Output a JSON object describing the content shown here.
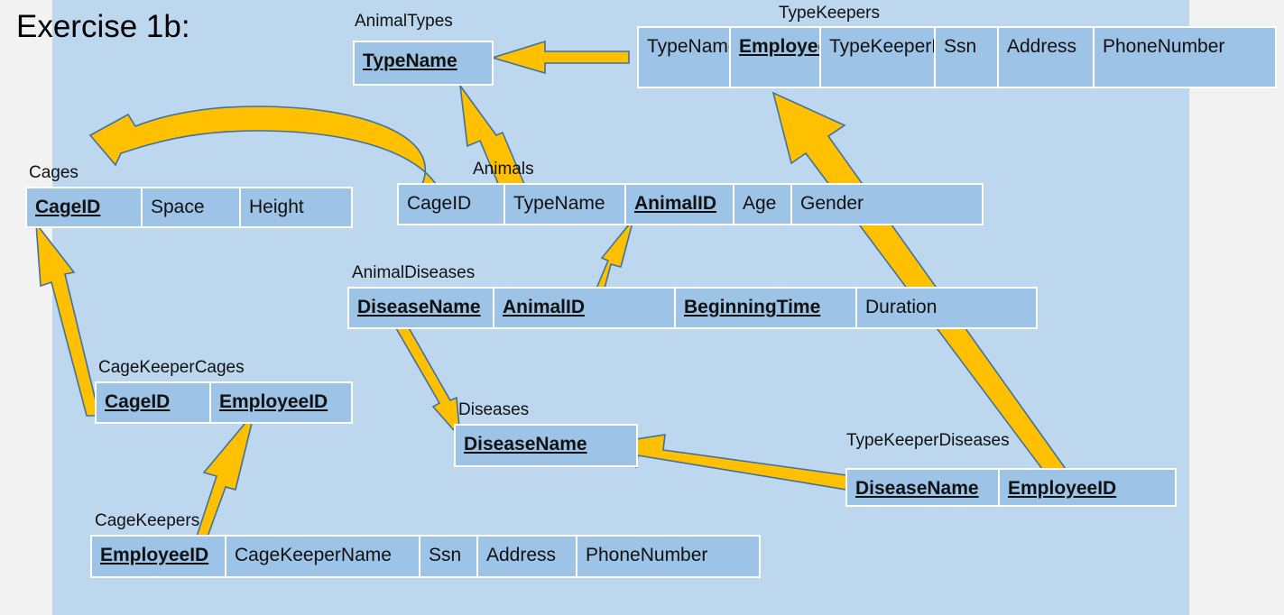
{
  "slide_title": "Exercise 1b:",
  "colors": {
    "background": "#f2f2f2",
    "panel": "#bdd7ee",
    "table_fill": "#9dc3e6",
    "arrow_fill": "#ffc000",
    "arrow_outline": "#41719c"
  },
  "tables": {
    "animal_types": {
      "name": "AnimalTypes",
      "columns": [
        "TypeName"
      ]
    },
    "type_keepers": {
      "name": "TypeKeepers",
      "columns": [
        "TypeName",
        "EmployeeID",
        "TypeKeeperName",
        "Ssn",
        "Address",
        "PhoneNumber"
      ]
    },
    "cages": {
      "name": "Cages",
      "columns": [
        "CageID",
        "Space",
        "Height"
      ]
    },
    "animals": {
      "name": "Animals",
      "columns": [
        "CageID",
        "TypeName",
        "AnimalID",
        "Age",
        "Gender"
      ]
    },
    "animal_diseases": {
      "name": "AnimalDiseases",
      "columns": [
        "DiseaseName",
        "AnimalID",
        "BeginningTime",
        "Duration"
      ]
    },
    "cage_keeper_cages": {
      "name": "CageKeeperCages",
      "columns": [
        "CageID",
        "EmployeeID"
      ]
    },
    "diseases": {
      "name": "Diseases",
      "columns": [
        "DiseaseName"
      ]
    },
    "type_keeper_diseases": {
      "name": "TypeKeeperDiseases",
      "columns": [
        "DiseaseName",
        "EmployeeID"
      ]
    },
    "cage_keepers": {
      "name": "CageKeepers",
      "columns": [
        "EmployeeID",
        "CageKeeperName",
        "Ssn",
        "Address",
        "PhoneNumber"
      ]
    }
  },
  "relationships": [
    {
      "from": "TypeKeepers.TypeName",
      "to": "AnimalTypes.TypeName"
    },
    {
      "from": "Animals.TypeName",
      "to": "AnimalTypes.TypeName"
    },
    {
      "from": "Animals.CageID",
      "to": "Cages.CageID"
    },
    {
      "from": "CageKeeperCages.CageID",
      "to": "Cages.CageID"
    },
    {
      "from": "CageKeepers.EmployeeID",
      "to": "CageKeeperCages.EmployeeID"
    },
    {
      "from": "AnimalDiseases.AnimalID",
      "to": "Animals.AnimalID"
    },
    {
      "from": "AnimalDiseases.DiseaseName",
      "to": "Diseases.DiseaseName"
    },
    {
      "from": "TypeKeeperDiseases.DiseaseName",
      "to": "Diseases.DiseaseName"
    },
    {
      "from": "TypeKeeperDiseases.EmployeeID",
      "to": "TypeKeepers.EmployeeID"
    }
  ]
}
